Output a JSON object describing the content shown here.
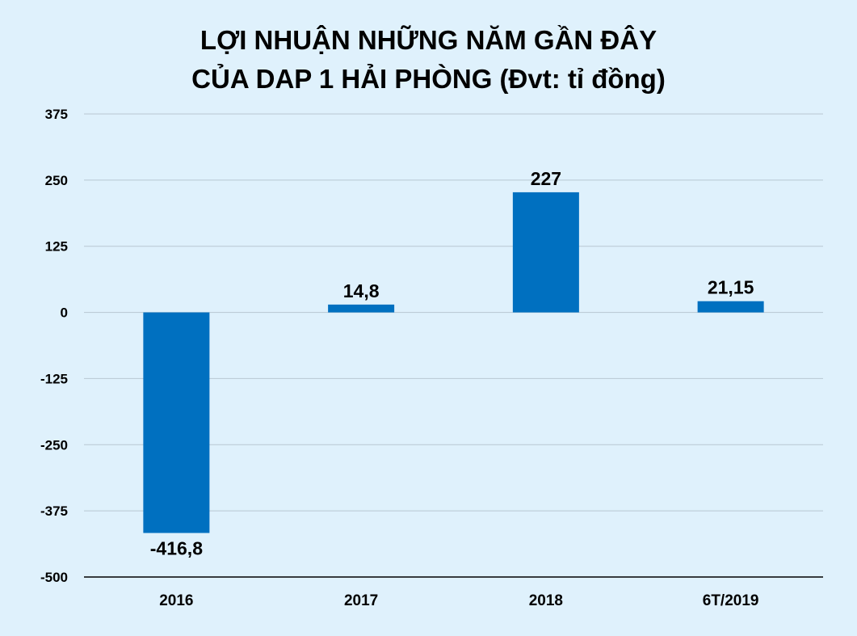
{
  "chart_data": {
    "type": "bar",
    "title": "LỢI NHUẬN NHỮNG NĂM GẦN ĐÂY",
    "subtitle": "CỦA DAP 1 HẢI PHÒNG (Đvt: tỉ đồng)",
    "xlabel": "",
    "ylabel": "",
    "categories": [
      "2016",
      "2017",
      "2018",
      "6T/2019"
    ],
    "values": [
      -416.8,
      14.8,
      227,
      21.15
    ],
    "data_labels": [
      "-416,8",
      "14,8",
      "227",
      "21,15"
    ],
    "yticks": [
      375,
      250,
      125,
      0,
      -125,
      -250,
      -375,
      -500
    ],
    "ytick_labels": [
      "375",
      "250",
      "125",
      "0",
      "-125",
      "-250",
      "-375",
      "-500"
    ],
    "ylim": [
      -500,
      375
    ],
    "grid": true,
    "legend": "none",
    "bar_color": "#0070c0",
    "grid_color": "#b8c7d2",
    "background": "#dff1fc"
  }
}
